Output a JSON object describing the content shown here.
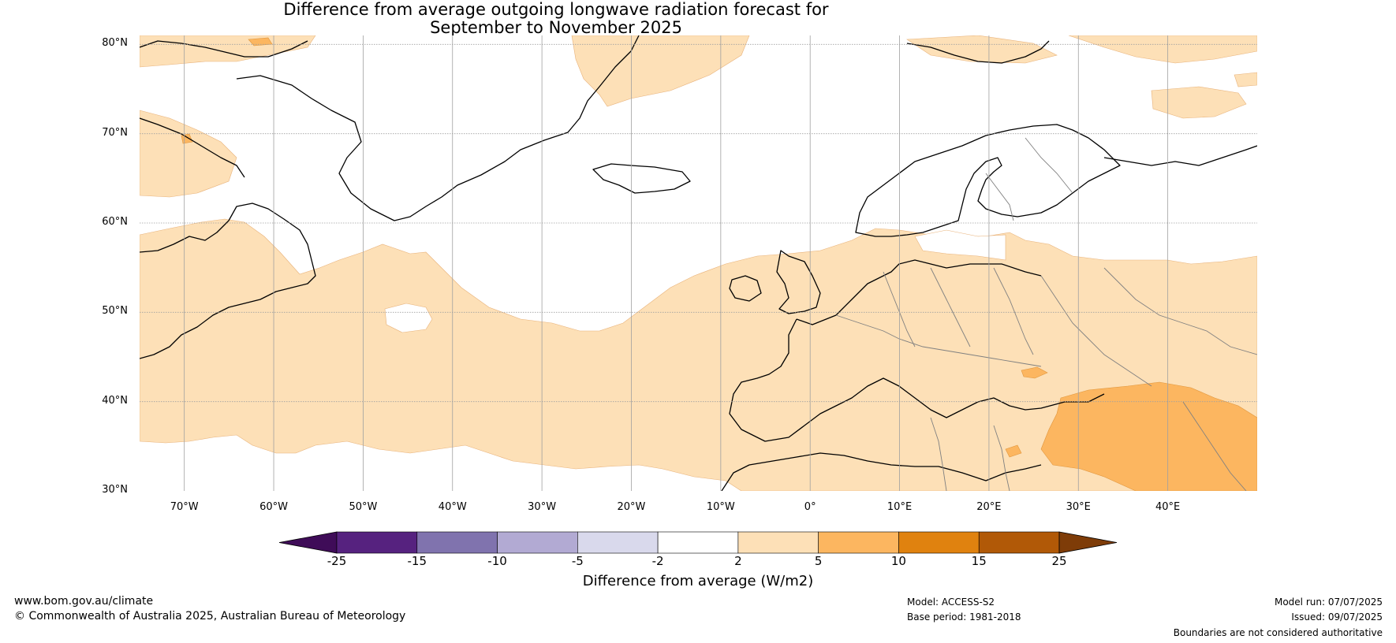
{
  "title": {
    "line1": "Difference from average outgoing longwave radiation forecast for",
    "line2": "September to November 2025"
  },
  "map": {
    "lat_ticks": [
      "80°N",
      "70°N",
      "60°N",
      "50°N",
      "40°N",
      "30°N"
    ],
    "lon_ticks": [
      "70°W",
      "60°W",
      "50°W",
      "40°W",
      "30°W",
      "20°W",
      "10°W",
      "0°",
      "10°E",
      "20°E",
      "30°E",
      "40°E"
    ],
    "lat_range": [
      30,
      81
    ],
    "lon_range": [
      -75,
      50
    ]
  },
  "colorbar": {
    "ticks": [
      "-25",
      "-15",
      "-10",
      "-5",
      "-2",
      "2",
      "5",
      "10",
      "15",
      "25"
    ],
    "colors": [
      "#3f0c58",
      "#56227f",
      "#8073ae",
      "#b2aad3",
      "#d9d9ec",
      "#ffffff",
      "#fde0b7",
      "#fcb660",
      "#e0820f",
      "#b15907",
      "#7e3c08"
    ],
    "title": "Difference from average (W/m2)"
  },
  "footer": {
    "website": "www.bom.gov.au/climate",
    "copyright": "© Commonwealth of Australia 2025, Australian Bureau of Meteorology",
    "model": "Model: ACCESS-S2",
    "base_period": "Base period: 1981-2018",
    "model_run": "Model run: 07/07/2025",
    "issued": "Issued: 09/07/2025",
    "disclaimer": "Boundaries are not considered authoritative"
  }
}
